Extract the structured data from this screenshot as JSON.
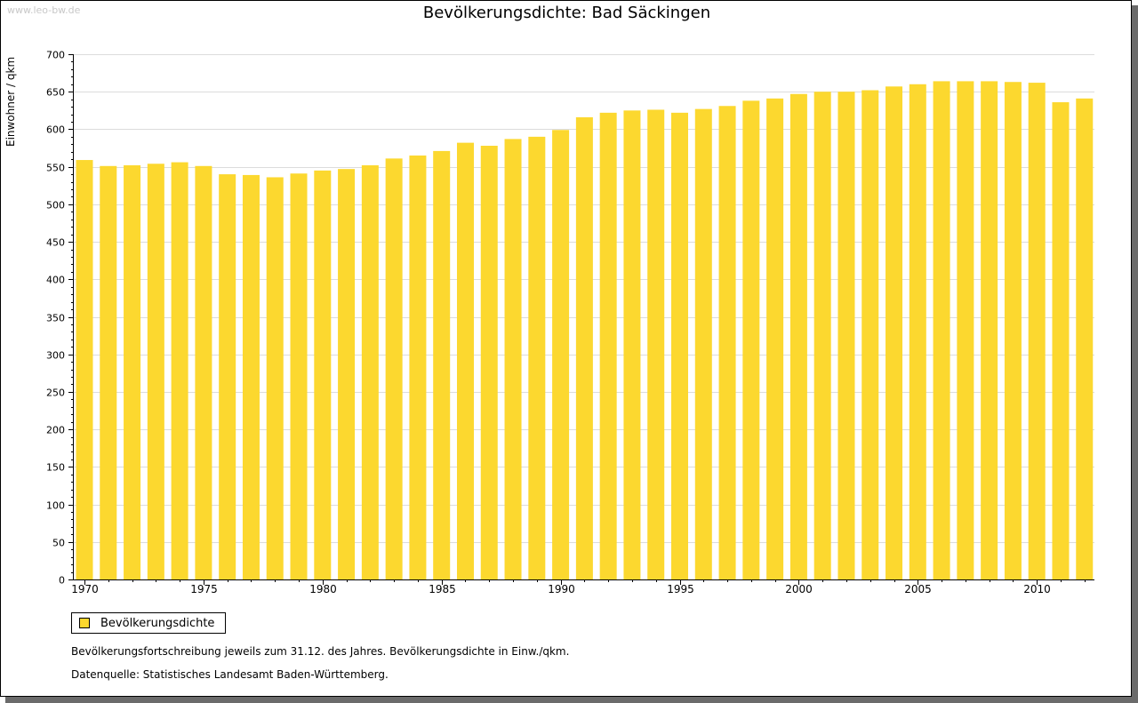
{
  "watermark": "www.leo-bw.de",
  "chart_data": {
    "type": "bar",
    "title": "Bevölkerungsdichte: Bad Säckingen",
    "xlabel": "",
    "ylabel": "Einwohner / qkm",
    "ylim": [
      0,
      700
    ],
    "yticks": [
      0,
      50,
      100,
      150,
      200,
      250,
      300,
      350,
      400,
      450,
      500,
      550,
      600,
      650,
      700
    ],
    "xtick_labels": [
      "1970",
      "1975",
      "1980",
      "1985",
      "1990",
      "1995",
      "2000",
      "2005",
      "2010"
    ],
    "grid": true,
    "bar_color": "#FCD82F",
    "categories": [
      "1970",
      "1971",
      "1972",
      "1973",
      "1974",
      "1975",
      "1976",
      "1977",
      "1978",
      "1979",
      "1980",
      "1981",
      "1982",
      "1983",
      "1984",
      "1985",
      "1986",
      "1987",
      "1988",
      "1989",
      "1990",
      "1991",
      "1992",
      "1993",
      "1994",
      "1995",
      "1996",
      "1997",
      "1998",
      "1999",
      "2000",
      "2001",
      "2002",
      "2003",
      "2004",
      "2005",
      "2006",
      "2007",
      "2008",
      "2009",
      "2010",
      "2011",
      "2012"
    ],
    "series": [
      {
        "name": "Bevölkerungsdichte",
        "values": [
          559,
          551,
          552,
          554,
          556,
          551,
          540,
          539,
          536,
          541,
          545,
          547,
          552,
          561,
          565,
          571,
          582,
          578,
          587,
          590,
          599,
          616,
          622,
          625,
          626,
          622,
          627,
          631,
          638,
          641,
          647,
          650,
          650,
          652,
          657,
          660,
          664,
          664,
          664,
          663,
          662,
          636,
          641
        ]
      }
    ]
  },
  "legend": {
    "label": "Bevölkerungsdichte"
  },
  "notes": {
    "line1": "Bevölkerungsfortschreibung jeweils zum 31.12. des Jahres. Bevölkerungsdichte in Einw./qkm.",
    "line2": "Datenquelle: Statistisches Landesamt Baden-Württemberg."
  }
}
